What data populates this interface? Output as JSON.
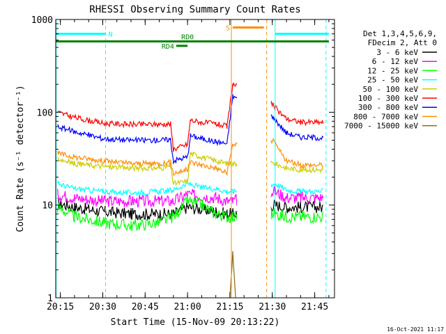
{
  "chart_data": {
    "type": "line",
    "title": "RHESSI Observing Summary Count Rates",
    "xlabel": "Start Time (15-Nov-09 20:13:22)",
    "ylabel": "Count Rate (s⁻¹ detector⁻¹)",
    "y_scale": "log",
    "ylim": [
      1,
      1000
    ],
    "xlim": [
      "20:13:22",
      "21:52:00"
    ],
    "x_ticks": [
      "20:15",
      "20:30",
      "20:45",
      "21:00",
      "21:15",
      "21:30",
      "21:45"
    ],
    "y_ticks": [
      "1",
      "10",
      "100",
      "1000"
    ],
    "grid": false,
    "legend_position": "right",
    "legend_header": [
      "Det 1,3,4,5,6,9,",
      "FDecim 2, Att 0"
    ],
    "footer_date": "16-Oct-2021 11:17",
    "series": [
      {
        "name": "3 - 6 keV",
        "color": "#000000",
        "points": [
          [
            "20:14",
            10.5
          ],
          [
            "20:20",
            9.5
          ],
          [
            "20:30",
            8.5
          ],
          [
            "20:40",
            8
          ],
          [
            "20:50",
            8
          ],
          [
            "20:55",
            8
          ],
          [
            "21:00",
            9.5
          ],
          [
            "21:05",
            9
          ],
          [
            "21:10",
            8.5
          ],
          [
            "21:14",
            8
          ],
          [
            "21:16",
            8
          ],
          [
            "21:31",
            10
          ],
          [
            "21:35",
            9.5
          ],
          [
            "21:40",
            9.5
          ],
          [
            "21:48",
            9.5
          ]
        ]
      },
      {
        "name": "6 - 12 keV",
        "color": "#ff00ff",
        "points": [
          [
            "20:14",
            13
          ],
          [
            "20:20",
            12
          ],
          [
            "20:30",
            11
          ],
          [
            "20:40",
            11
          ],
          [
            "20:50",
            11
          ],
          [
            "20:55",
            11
          ],
          [
            "21:00",
            13
          ],
          [
            "21:05",
            12.5
          ],
          [
            "21:10",
            12
          ],
          [
            "21:14",
            11
          ],
          [
            "21:16",
            11
          ],
          [
            "21:31",
            14
          ],
          [
            "21:35",
            12
          ],
          [
            "21:40",
            12
          ],
          [
            "21:48",
            12
          ]
        ]
      },
      {
        "name": "12 - 25 keV",
        "color": "#00ff00",
        "points": [
          [
            "20:14",
            9.5
          ],
          [
            "20:20",
            7.5
          ],
          [
            "20:30",
            6.5
          ],
          [
            "20:40",
            6
          ],
          [
            "20:50",
            6.5
          ],
          [
            "20:55",
            7.5
          ],
          [
            "21:00",
            11
          ],
          [
            "21:05",
            10
          ],
          [
            "21:10",
            8
          ],
          [
            "21:14",
            7.5
          ],
          [
            "21:16",
            7.5
          ],
          [
            "21:31",
            8
          ],
          [
            "21:35",
            7.5
          ],
          [
            "21:40",
            7.5
          ],
          [
            "21:48",
            7.5
          ]
        ]
      },
      {
        "name": "25 - 50 keV",
        "color": "#00ffff",
        "points": [
          [
            "20:14",
            17
          ],
          [
            "20:20",
            15
          ],
          [
            "20:30",
            14
          ],
          [
            "20:40",
            13.5
          ],
          [
            "20:50",
            14
          ],
          [
            "20:55",
            14.5
          ],
          [
            "21:00",
            17
          ],
          [
            "21:05",
            15.5
          ],
          [
            "21:10",
            15
          ],
          [
            "21:14",
            14
          ],
          [
            "21:16",
            14
          ],
          [
            "21:31",
            17
          ],
          [
            "21:35",
            14.5
          ],
          [
            "21:40",
            14
          ],
          [
            "21:48",
            14
          ]
        ]
      },
      {
        "name": "50 - 100 keV",
        "color": "#cccc00",
        "points": [
          [
            "20:14",
            32
          ],
          [
            "20:20",
            28
          ],
          [
            "20:30",
            26
          ],
          [
            "20:40",
            25
          ],
          [
            "20:50",
            25
          ],
          [
            "20:54",
            26
          ],
          [
            "20:55",
            17
          ],
          [
            "21:00",
            18
          ],
          [
            "21:01",
            36
          ],
          [
            "21:05",
            33
          ],
          [
            "21:10",
            30
          ],
          [
            "21:14",
            28
          ],
          [
            "21:16",
            28
          ],
          [
            "21:31",
            28
          ],
          [
            "21:35",
            25
          ],
          [
            "21:40",
            24
          ],
          [
            "21:48",
            24
          ]
        ]
      },
      {
        "name": "100 - 300 keV",
        "color": "#ff0000",
        "points": [
          [
            "20:14",
            100
          ],
          [
            "20:20",
            88
          ],
          [
            "20:30",
            76
          ],
          [
            "20:40",
            74
          ],
          [
            "20:50",
            74
          ],
          [
            "20:54",
            75
          ],
          [
            "20:55",
            40
          ],
          [
            "21:00",
            45
          ],
          [
            "21:01",
            82
          ],
          [
            "21:05",
            78
          ],
          [
            "21:10",
            75
          ],
          [
            "21:14",
            70
          ],
          [
            "21:16",
            200
          ],
          [
            "21:30",
            120
          ],
          [
            "21:35",
            85
          ],
          [
            "21:40",
            78
          ],
          [
            "21:48",
            78
          ]
        ]
      },
      {
        "name": "300 - 800 keV",
        "color": "#0000ff",
        "points": [
          [
            "20:14",
            70
          ],
          [
            "20:20",
            62
          ],
          [
            "20:30",
            52
          ],
          [
            "20:40",
            50
          ],
          [
            "20:50",
            50
          ],
          [
            "20:54",
            51
          ],
          [
            "20:55",
            30
          ],
          [
            "21:00",
            33
          ],
          [
            "21:01",
            56
          ],
          [
            "21:05",
            52
          ],
          [
            "21:10",
            48
          ],
          [
            "21:14",
            46
          ],
          [
            "21:16",
            150
          ],
          [
            "21:30",
            90
          ],
          [
            "21:35",
            60
          ],
          [
            "21:40",
            54
          ],
          [
            "21:48",
            53
          ]
        ]
      },
      {
        "name": "800 - 7000 keV",
        "color": "#ff8c00",
        "points": [
          [
            "20:14",
            36
          ],
          [
            "20:20",
            33
          ],
          [
            "20:30",
            30
          ],
          [
            "20:40",
            28
          ],
          [
            "20:50",
            28
          ],
          [
            "20:54",
            29
          ],
          [
            "20:55",
            22
          ],
          [
            "21:00",
            24
          ],
          [
            "21:01",
            29
          ],
          [
            "21:05",
            27
          ],
          [
            "21:10",
            25
          ],
          [
            "21:14",
            22
          ],
          [
            "21:16",
            45
          ],
          [
            "21:30",
            50
          ],
          [
            "21:35",
            30
          ],
          [
            "21:40",
            27
          ],
          [
            "21:48",
            27
          ]
        ]
      },
      {
        "name": "7000 - 15000 keV",
        "color": "#8b6914",
        "points": [
          [
            "21:15",
            1
          ],
          [
            "21:16",
            3
          ],
          [
            "21:17",
            1
          ]
        ]
      }
    ],
    "annotations": {
      "vlines": [
        {
          "time": "20:13:30",
          "color": "#00ffff",
          "style": "solid"
        },
        {
          "time": "20:31",
          "color": "#00ffff",
          "style": "dashed"
        },
        {
          "time": "21:15:30",
          "color": "#ff8c00",
          "style": "solid"
        },
        {
          "time": "21:28",
          "color": "#ff8c00",
          "style": "dashed"
        },
        {
          "time": "21:31",
          "color": "#00ffff",
          "style": "solid"
        },
        {
          "time": "21:49",
          "color": "#00ffff",
          "style": "dashed"
        }
      ],
      "bars": [
        {
          "label": "N",
          "color": "#00ffff",
          "start": "20:13:22",
          "end": "20:31",
          "level": 700
        },
        {
          "label": "",
          "color": "#00ffff",
          "start": "21:31",
          "end": "21:50",
          "level": 700
        },
        {
          "label": "S",
          "color": "#ff8c00",
          "start": "21:16",
          "end": "21:27",
          "level": 820
        },
        {
          "label": "RD0",
          "color": "#008000",
          "start": "20:13:22",
          "end": "21:50",
          "level": 580
        },
        {
          "label": "RD4",
          "color": "#008000",
          "start": "20:56",
          "end": "21:00",
          "level": 520
        }
      ]
    }
  }
}
